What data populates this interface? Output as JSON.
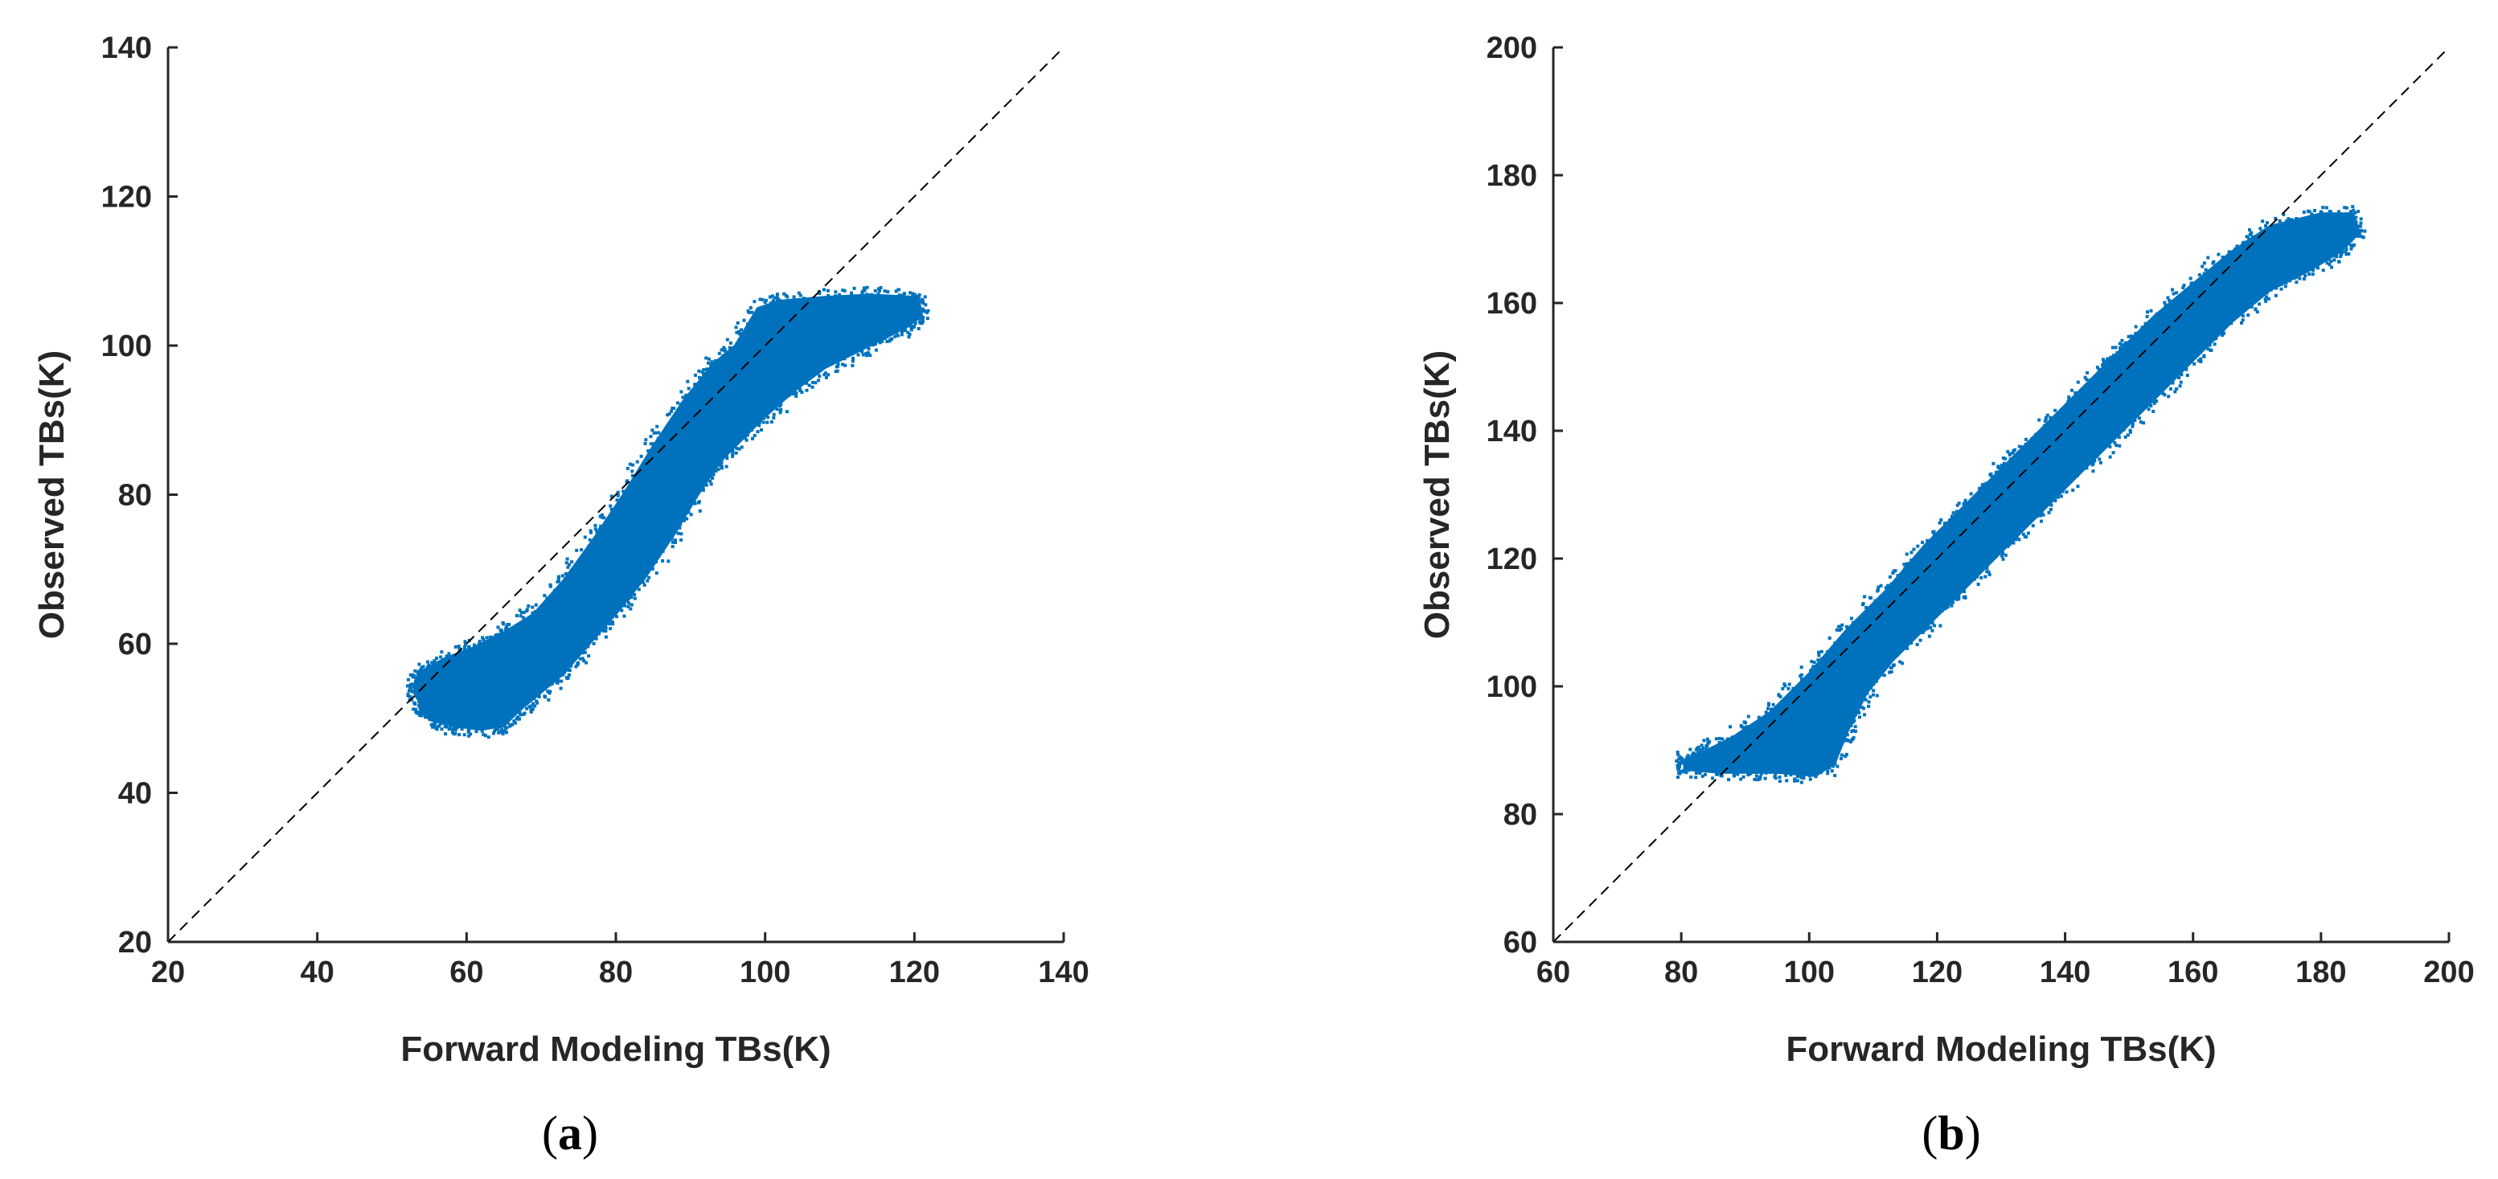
{
  "chart_data": [
    {
      "type": "scatter",
      "panel_label_open": "(",
      "panel_label_letter": "a",
      "panel_label_close": ")",
      "xlabel": "Forward Modeling TBs(K)",
      "ylabel": "Observed TBs(K)",
      "xlim": [
        20,
        140
      ],
      "ylim": [
        20,
        140
      ],
      "xticks": [
        20,
        40,
        60,
        80,
        100,
        120,
        140
      ],
      "yticks": [
        20,
        40,
        60,
        80,
        100,
        120,
        140
      ],
      "grid": false,
      "reference_line": {
        "style": "dashed",
        "color": "#000000",
        "from": [
          20,
          20
        ],
        "to": [
          140,
          140
        ]
      },
      "point_color": "#0072BD",
      "point_cloud_outline": [
        [
          54,
          51.5
        ],
        [
          55,
          49.8
        ],
        [
          58,
          49
        ],
        [
          62,
          48.5
        ],
        [
          65,
          49
        ],
        [
          67,
          51
        ],
        [
          70,
          53.5
        ],
        [
          73,
          56
        ],
        [
          76,
          59.5
        ],
        [
          80,
          64
        ],
        [
          84,
          69
        ],
        [
          88,
          75
        ],
        [
          91,
          80
        ],
        [
          94,
          84.5
        ],
        [
          97,
          87.5
        ],
        [
          100,
          90.5
        ],
        [
          104,
          94
        ],
        [
          108,
          97
        ],
        [
          112,
          99
        ],
        [
          116,
          101
        ],
        [
          119,
          102.5
        ],
        [
          121,
          104
        ],
        [
          120.5,
          106.5
        ],
        [
          114,
          106.8
        ],
        [
          108,
          106.5
        ],
        [
          102,
          106
        ],
        [
          99,
          105
        ],
        [
          96,
          100
        ],
        [
          93,
          97.5
        ],
        [
          89,
          92.5
        ],
        [
          85,
          86.5
        ],
        [
          81,
          80
        ],
        [
          77,
          74
        ],
        [
          73,
          68.5
        ],
        [
          69,
          64
        ],
        [
          65,
          61.5
        ],
        [
          61,
          59.5
        ],
        [
          57,
          58
        ],
        [
          53.5,
          56
        ],
        [
          53,
          53.5
        ]
      ]
    },
    {
      "type": "scatter",
      "panel_label_open": "(",
      "panel_label_letter": "b",
      "panel_label_close": ")",
      "xlabel": "Forward Modeling TBs(K)",
      "ylabel": "Observed TBs(K)",
      "xlim": [
        60,
        200
      ],
      "ylim": [
        60,
        200
      ],
      "xticks": [
        60,
        80,
        100,
        120,
        140,
        160,
        180,
        200
      ],
      "yticks": [
        60,
        80,
        100,
        120,
        140,
        160,
        180,
        200
      ],
      "grid": false,
      "reference_line": {
        "style": "dashed",
        "color": "#000000",
        "from": [
          60,
          60
        ],
        "to": [
          200,
          200
        ]
      },
      "point_color": "#0072BD",
      "point_cloud_outline": [
        [
          80.5,
          87
        ],
        [
          86,
          86.5
        ],
        [
          95,
          86.5
        ],
        [
          101,
          86
        ],
        [
          104,
          88
        ],
        [
          106,
          93
        ],
        [
          109,
          99
        ],
        [
          113,
          104
        ],
        [
          118,
          109
        ],
        [
          124,
          115
        ],
        [
          130,
          121
        ],
        [
          136,
          127
        ],
        [
          142,
          133
        ],
        [
          148,
          139
        ],
        [
          154,
          145
        ],
        [
          160,
          151
        ],
        [
          166,
          157
        ],
        [
          172,
          162
        ],
        [
          178,
          165
        ],
        [
          183,
          168
        ],
        [
          186,
          171
        ],
        [
          185,
          174
        ],
        [
          180,
          174
        ],
        [
          172,
          172
        ],
        [
          166,
          168
        ],
        [
          160,
          163
        ],
        [
          154,
          158
        ],
        [
          148,
          152
        ],
        [
          142,
          146
        ],
        [
          136,
          140
        ],
        [
          130,
          134
        ],
        [
          124,
          128
        ],
        [
          118,
          122
        ],
        [
          112,
          115
        ],
        [
          106,
          109
        ],
        [
          100,
          102
        ],
        [
          94,
          96
        ],
        [
          88,
          92
        ],
        [
          83,
          89.5
        ],
        [
          80.5,
          88.5
        ]
      ]
    }
  ]
}
